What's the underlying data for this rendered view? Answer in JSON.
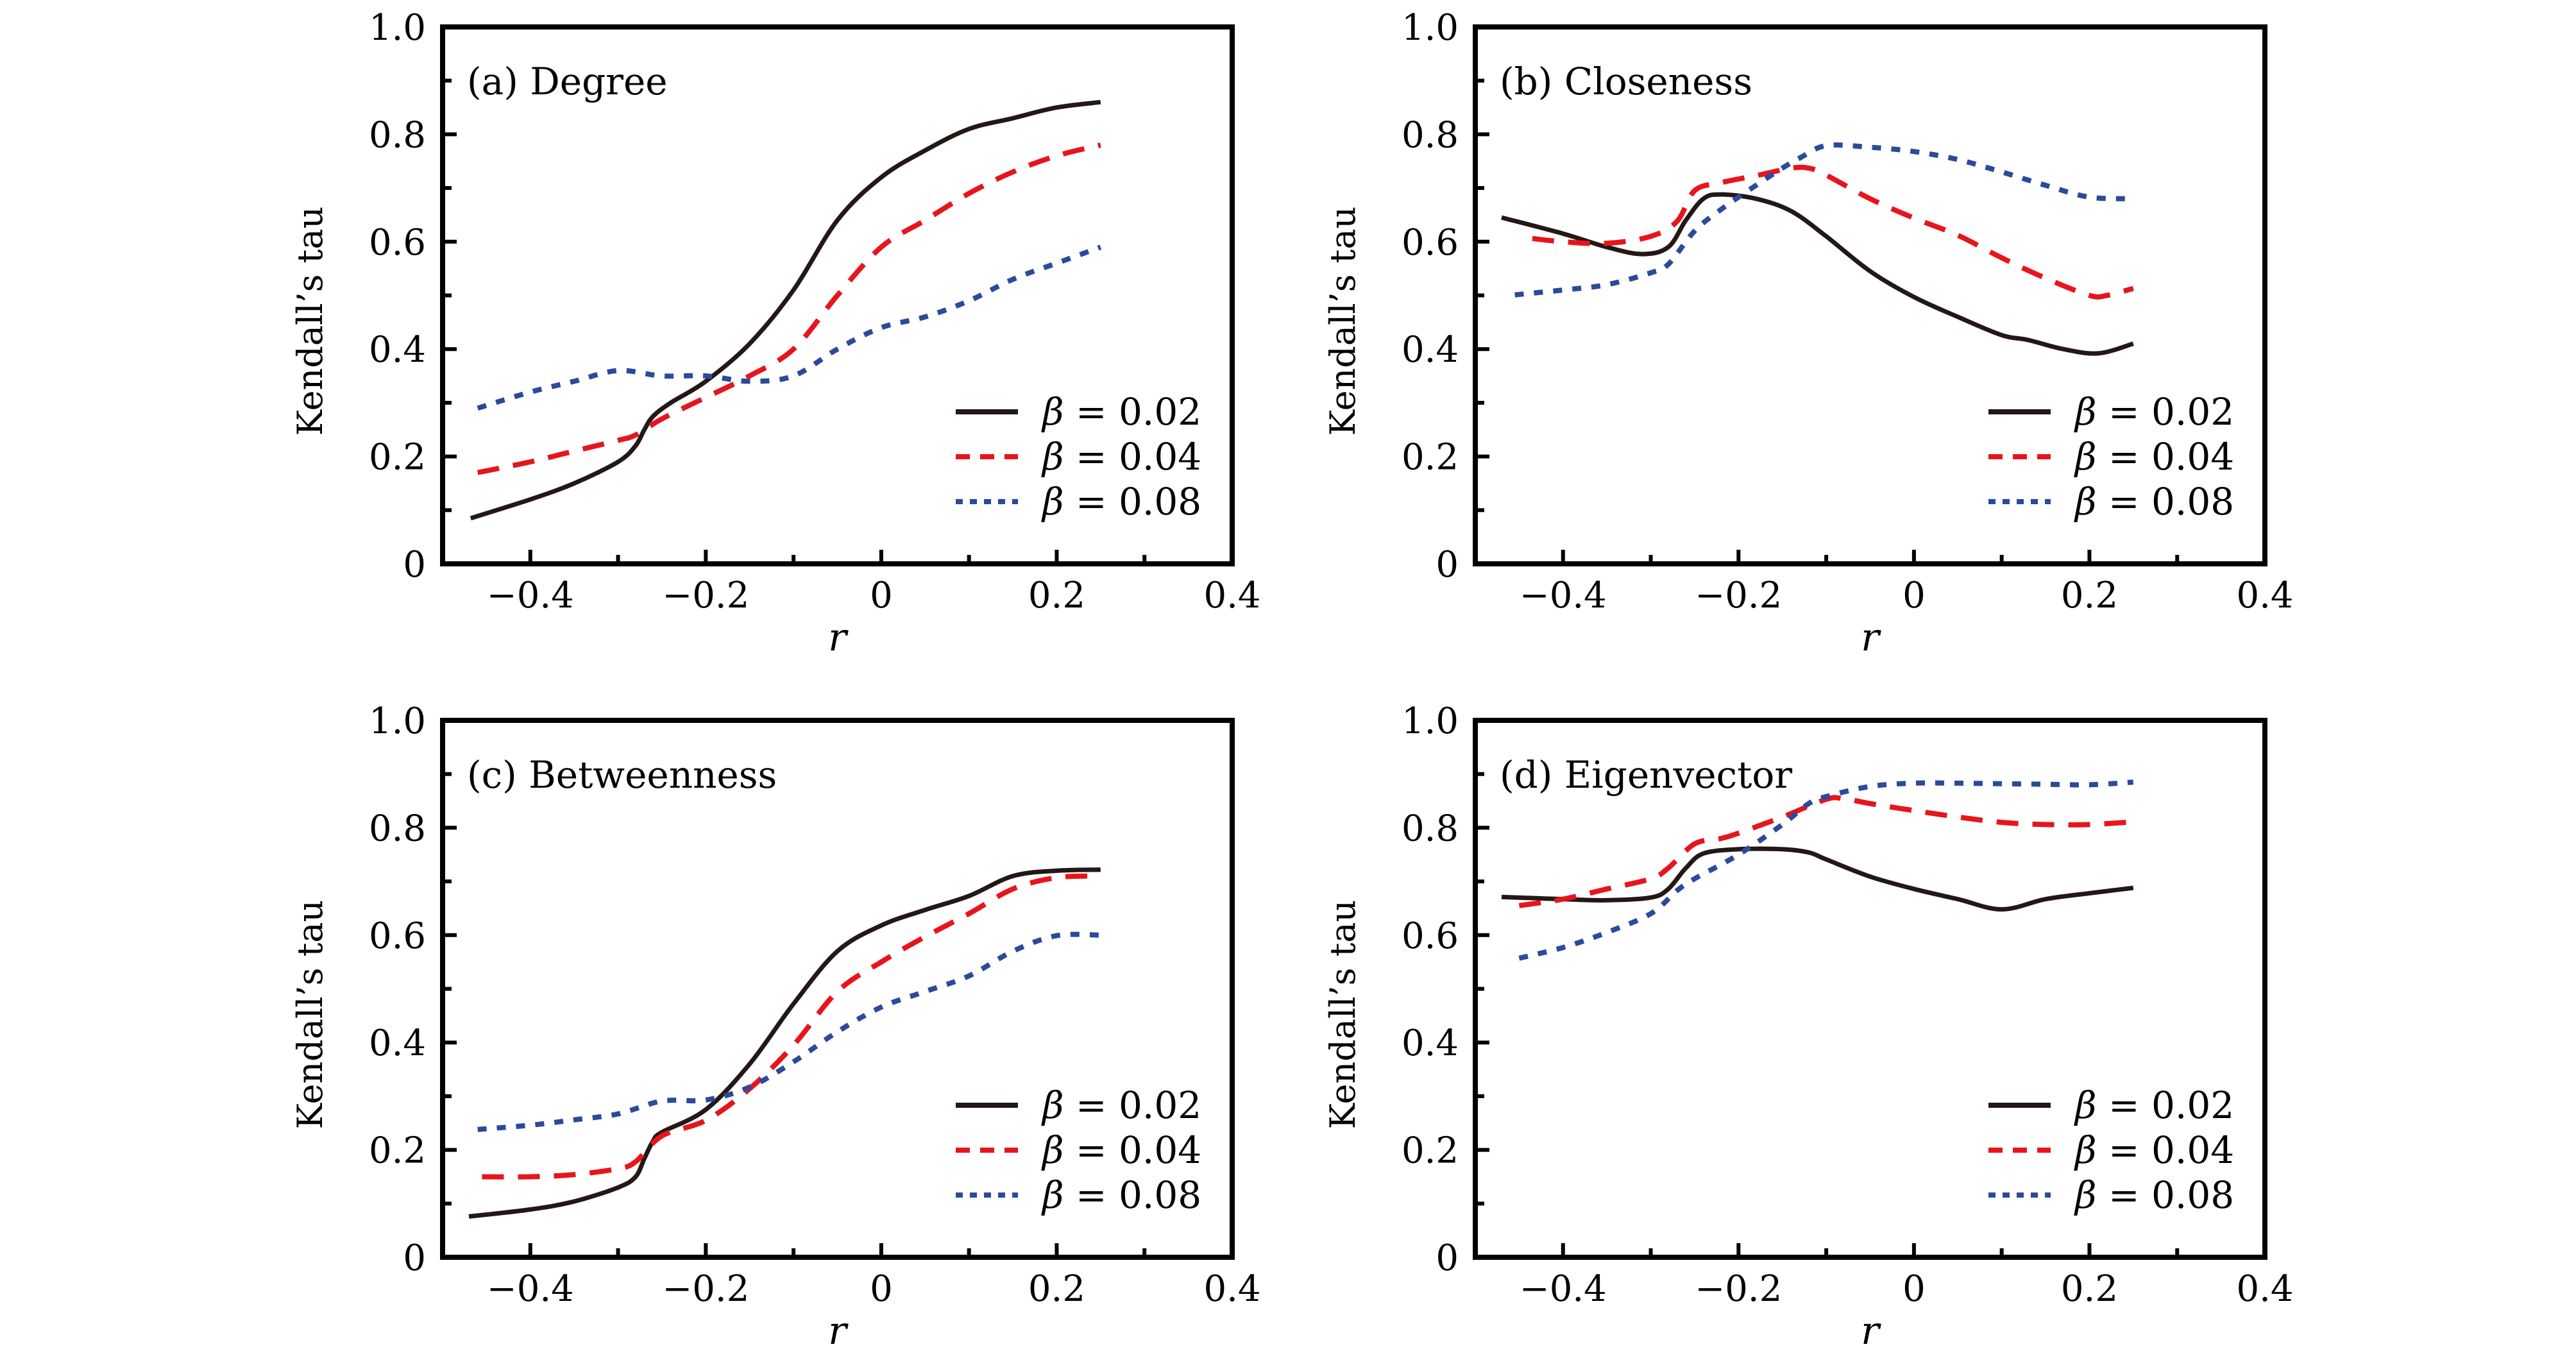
{
  "figure": {
    "colors": {
      "beta_0.02": "#231815",
      "beta_0.04": "#E8141C",
      "beta_0.08": "#2B4A9C",
      "axis": "#000000"
    }
  },
  "chart_data": [
    {
      "type": "line",
      "id": "a",
      "title": "(a) Degree",
      "xlabel": "r",
      "ylabel": "Kendall’s tau",
      "xlim": [
        -0.5,
        0.4
      ],
      "ylim": [
        0,
        1.0
      ],
      "xticks": [
        -0.4,
        -0.2,
        0,
        0.2,
        0.4
      ],
      "xtick_labels": [
        "−0.4",
        "−0.2",
        "0",
        "0.2",
        "0.4"
      ],
      "xminor": [
        -0.3,
        -0.1,
        0.1,
        0.3
      ],
      "yticks": [
        0,
        0.2,
        0.4,
        0.6,
        0.8,
        1.0
      ],
      "ytick_labels": [
        "0",
        "0.2",
        "0.4",
        "0.6",
        "0.8",
        "1.0"
      ],
      "yminor": [
        0.1,
        0.3,
        0.5,
        0.7,
        0.9
      ],
      "grid": false,
      "legend_position": "bottom-right",
      "series": [
        {
          "name": "β = 0.02",
          "label_beta": "β",
          "label_value": "= 0.02",
          "style": "solid",
          "color_key": "beta_0.02",
          "x": [
            -0.468,
            -0.4,
            -0.35,
            -0.3,
            -0.28,
            -0.27,
            -0.26,
            -0.24,
            -0.2,
            -0.15,
            -0.1,
            -0.05,
            0,
            0.05,
            0.1,
            0.15,
            0.2,
            0.25
          ],
          "y": [
            0.085,
            0.12,
            0.15,
            0.19,
            0.22,
            0.25,
            0.275,
            0.3,
            0.34,
            0.41,
            0.51,
            0.64,
            0.72,
            0.77,
            0.81,
            0.83,
            0.85,
            0.86
          ]
        },
        {
          "name": "β = 0.04",
          "label_beta": "β",
          "label_value": "= 0.04",
          "style": "dashed",
          "color_key": "beta_0.04",
          "x": [
            -0.46,
            -0.4,
            -0.35,
            -0.3,
            -0.28,
            -0.25,
            -0.2,
            -0.15,
            -0.1,
            -0.05,
            0,
            0.05,
            0.1,
            0.15,
            0.2,
            0.25
          ],
          "y": [
            0.17,
            0.19,
            0.21,
            0.23,
            0.24,
            0.27,
            0.31,
            0.35,
            0.4,
            0.5,
            0.59,
            0.64,
            0.69,
            0.73,
            0.76,
            0.78
          ]
        },
        {
          "name": "β = 0.08",
          "label_beta": "β",
          "label_value": "= 0.08",
          "style": "dotted",
          "color_key": "beta_0.08",
          "x": [
            -0.46,
            -0.4,
            -0.35,
            -0.3,
            -0.25,
            -0.2,
            -0.15,
            -0.1,
            -0.05,
            0,
            0.05,
            0.1,
            0.15,
            0.2,
            0.25
          ],
          "y": [
            0.29,
            0.32,
            0.34,
            0.36,
            0.35,
            0.35,
            0.34,
            0.35,
            0.4,
            0.44,
            0.46,
            0.49,
            0.53,
            0.56,
            0.59
          ]
        }
      ]
    },
    {
      "type": "line",
      "id": "b",
      "title": "(b) Closeness",
      "xlabel": "r",
      "ylabel": "Kendall’s tau",
      "xlim": [
        -0.5,
        0.4
      ],
      "ylim": [
        0,
        1.0
      ],
      "xticks": [
        -0.4,
        -0.2,
        0,
        0.2,
        0.4
      ],
      "xtick_labels": [
        "−0.4",
        "−0.2",
        "0",
        "0.2",
        "0.4"
      ],
      "xminor": [
        -0.3,
        -0.1,
        0.1,
        0.3
      ],
      "yticks": [
        0,
        0.2,
        0.4,
        0.6,
        0.8,
        1.0
      ],
      "ytick_labels": [
        "0",
        "0.2",
        "0.4",
        "0.6",
        "0.8",
        "1.0"
      ],
      "yminor": [
        0.1,
        0.3,
        0.5,
        0.7,
        0.9
      ],
      "grid": false,
      "legend_position": "bottom-right",
      "series": [
        {
          "name": "β = 0.02",
          "label_beta": "β",
          "label_value": "= 0.02",
          "style": "solid",
          "color_key": "beta_0.02",
          "x": [
            -0.47,
            -0.4,
            -0.35,
            -0.31,
            -0.28,
            -0.26,
            -0.24,
            -0.22,
            -0.18,
            -0.14,
            -0.1,
            -0.05,
            0,
            0.05,
            0.1,
            0.13,
            0.17,
            0.21,
            0.25
          ],
          "y": [
            0.645,
            0.615,
            0.59,
            0.577,
            0.59,
            0.64,
            0.68,
            0.688,
            0.68,
            0.657,
            0.61,
            0.545,
            0.497,
            0.46,
            0.426,
            0.417,
            0.4,
            0.392,
            0.41
          ]
        },
        {
          "name": "β = 0.04",
          "label_beta": "β",
          "label_value": "= 0.04",
          "style": "dashed",
          "color_key": "beta_0.04",
          "x": [
            -0.435,
            -0.4,
            -0.35,
            -0.3,
            -0.27,
            -0.25,
            -0.22,
            -0.18,
            -0.14,
            -0.12,
            -0.1,
            -0.05,
            0,
            0.05,
            0.1,
            0.15,
            0.2,
            0.22,
            0.25
          ],
          "y": [
            0.606,
            0.6,
            0.597,
            0.61,
            0.638,
            0.695,
            0.71,
            0.723,
            0.737,
            0.737,
            0.724,
            0.68,
            0.644,
            0.612,
            0.57,
            0.532,
            0.5,
            0.5,
            0.513
          ]
        },
        {
          "name": "β = 0.08",
          "label_beta": "β",
          "label_value": "= 0.08",
          "style": "dotted",
          "color_key": "beta_0.08",
          "x": [
            -0.455,
            -0.4,
            -0.35,
            -0.3,
            -0.28,
            -0.25,
            -0.22,
            -0.18,
            -0.15,
            -0.13,
            -0.1,
            -0.05,
            0,
            0.05,
            0.1,
            0.15,
            0.2,
            0.25
          ],
          "y": [
            0.501,
            0.51,
            0.52,
            0.542,
            0.558,
            0.62,
            0.66,
            0.705,
            0.737,
            0.756,
            0.779,
            0.776,
            0.768,
            0.753,
            0.73,
            0.705,
            0.683,
            0.68
          ]
        }
      ]
    },
    {
      "type": "line",
      "id": "c",
      "title": "(c) Betweenness",
      "xlabel": "r",
      "ylabel": "Kendall’s tau",
      "xlim": [
        -0.5,
        0.4
      ],
      "ylim": [
        0,
        1.0
      ],
      "xticks": [
        -0.4,
        -0.2,
        0,
        0.2,
        0.4
      ],
      "xtick_labels": [
        "−0.4",
        "−0.2",
        "0",
        "0.2",
        "0.4"
      ],
      "xminor": [
        -0.3,
        -0.1,
        0.1,
        0.3
      ],
      "yticks": [
        0,
        0.2,
        0.4,
        0.6,
        0.8,
        1.0
      ],
      "ytick_labels": [
        "0",
        "0.2",
        "0.4",
        "0.6",
        "0.8",
        "1.0"
      ],
      "yminor": [
        0.1,
        0.3,
        0.5,
        0.7,
        0.9
      ],
      "grid": false,
      "legend_position": "bottom-right",
      "series": [
        {
          "name": "β = 0.02",
          "label_beta": "β",
          "label_value": "= 0.02",
          "style": "solid",
          "color_key": "beta_0.02",
          "x": [
            -0.47,
            -0.4,
            -0.35,
            -0.3,
            -0.28,
            -0.27,
            -0.26,
            -0.25,
            -0.2,
            -0.15,
            -0.1,
            -0.05,
            0,
            0.05,
            0.1,
            0.15,
            0.2,
            0.25
          ],
          "y": [
            0.076,
            0.089,
            0.104,
            0.13,
            0.15,
            0.184,
            0.217,
            0.233,
            0.275,
            0.36,
            0.472,
            0.57,
            0.618,
            0.647,
            0.673,
            0.71,
            0.72,
            0.722
          ]
        },
        {
          "name": "β = 0.04",
          "label_beta": "β",
          "label_value": "= 0.04",
          "style": "dashed",
          "color_key": "beta_0.04",
          "x": [
            -0.455,
            -0.4,
            -0.35,
            -0.3,
            -0.28,
            -0.25,
            -0.2,
            -0.15,
            -0.1,
            -0.05,
            0,
            0.05,
            0.1,
            0.15,
            0.2,
            0.25
          ],
          "y": [
            0.15,
            0.15,
            0.154,
            0.165,
            0.178,
            0.226,
            0.255,
            0.314,
            0.395,
            0.495,
            0.55,
            0.597,
            0.64,
            0.686,
            0.707,
            0.71
          ]
        },
        {
          "name": "β = 0.08",
          "label_beta": "β",
          "label_value": "= 0.08",
          "style": "dotted",
          "color_key": "beta_0.08",
          "x": [
            -0.46,
            -0.4,
            -0.35,
            -0.3,
            -0.25,
            -0.2,
            -0.15,
            -0.1,
            -0.05,
            0,
            0.05,
            0.1,
            0.15,
            0.2,
            0.25
          ],
          "y": [
            0.238,
            0.246,
            0.256,
            0.267,
            0.291,
            0.293,
            0.317,
            0.364,
            0.42,
            0.466,
            0.495,
            0.524,
            0.57,
            0.599,
            0.6
          ]
        }
      ]
    },
    {
      "type": "line",
      "id": "d",
      "title": "(d) Eigenvector",
      "xlabel": "r",
      "ylabel": "Kendall’s tau",
      "xlim": [
        -0.5,
        0.4
      ],
      "ylim": [
        0,
        1.0
      ],
      "xticks": [
        -0.4,
        -0.2,
        0,
        0.2,
        0.4
      ],
      "xtick_labels": [
        "−0.4",
        "−0.2",
        "0",
        "0.2",
        "0.4"
      ],
      "xminor": [
        -0.3,
        -0.1,
        0.1,
        0.3
      ],
      "yticks": [
        0,
        0.2,
        0.4,
        0.6,
        0.8,
        1.0
      ],
      "ytick_labels": [
        "0",
        "0.2",
        "0.4",
        "0.6",
        "0.8",
        "1.0"
      ],
      "yminor": [
        0.1,
        0.3,
        0.5,
        0.7,
        0.9
      ],
      "grid": false,
      "legend_position": "bottom-right",
      "series": [
        {
          "name": "β = 0.02",
          "label_beta": "β",
          "label_value": "= 0.02",
          "style": "solid",
          "color_key": "beta_0.02",
          "x": [
            -0.47,
            -0.4,
            -0.35,
            -0.3,
            -0.28,
            -0.26,
            -0.24,
            -0.2,
            -0.15,
            -0.12,
            -0.1,
            -0.05,
            0,
            0.05,
            0.1,
            0.15,
            0.2,
            0.25
          ],
          "y": [
            0.671,
            0.667,
            0.665,
            0.67,
            0.686,
            0.725,
            0.752,
            0.76,
            0.76,
            0.754,
            0.741,
            0.709,
            0.686,
            0.667,
            0.648,
            0.667,
            0.678,
            0.688
          ]
        },
        {
          "name": "β = 0.04",
          "label_beta": "β",
          "label_value": "= 0.04",
          "style": "dashed",
          "color_key": "beta_0.04",
          "x": [
            -0.45,
            -0.4,
            -0.35,
            -0.3,
            -0.28,
            -0.25,
            -0.22,
            -0.2,
            -0.15,
            -0.1,
            -0.08,
            -0.05,
            0,
            0.05,
            0.1,
            0.15,
            0.2,
            0.25
          ],
          "y": [
            0.655,
            0.667,
            0.686,
            0.705,
            0.725,
            0.77,
            0.78,
            0.79,
            0.82,
            0.853,
            0.854,
            0.845,
            0.832,
            0.82,
            0.81,
            0.806,
            0.806,
            0.811
          ]
        },
        {
          "name": "β = 0.08",
          "label_beta": "β",
          "label_value": "= 0.08",
          "style": "dotted",
          "color_key": "beta_0.08",
          "x": [
            -0.45,
            -0.4,
            -0.35,
            -0.3,
            -0.27,
            -0.25,
            -0.2,
            -0.15,
            -0.12,
            -0.1,
            -0.05,
            0,
            0.05,
            0.1,
            0.15,
            0.2,
            0.25
          ],
          "y": [
            0.557,
            0.577,
            0.605,
            0.64,
            0.683,
            0.705,
            0.75,
            0.806,
            0.845,
            0.858,
            0.877,
            0.883,
            0.883,
            0.882,
            0.881,
            0.88,
            0.885
          ]
        }
      ]
    }
  ]
}
